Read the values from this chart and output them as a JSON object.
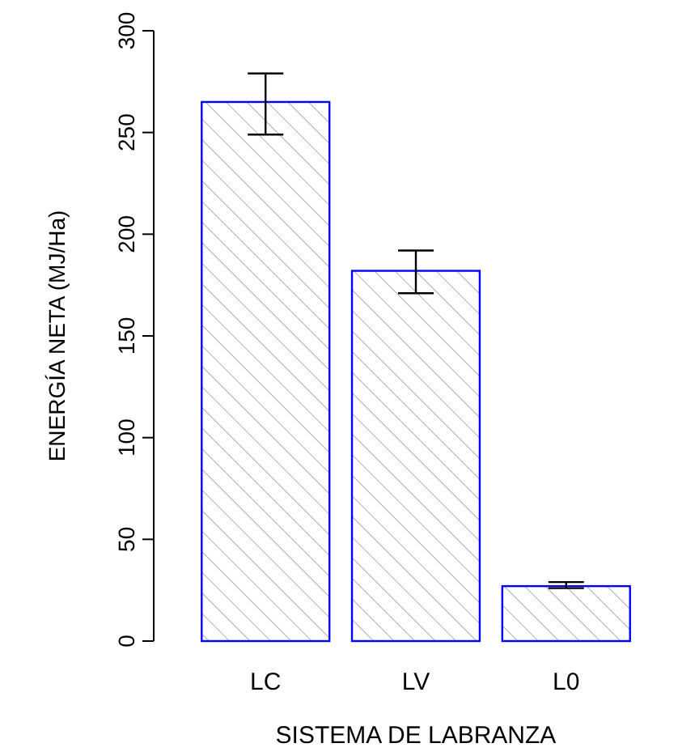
{
  "chart_data": {
    "type": "bar",
    "xlabel": "SISTEMA DE LABRANZA",
    "ylabel": "ENERGÍA NETA (MJ/Ha)",
    "categories": [
      "LC",
      "LV",
      "L0"
    ],
    "values": [
      265,
      182,
      27
    ],
    "errors": [
      [
        249,
        279
      ],
      [
        171,
        192
      ],
      [
        26,
        29
      ]
    ],
    "color": "#0000ff",
    "ylim": [
      0,
      300
    ],
    "yticks": [
      0,
      50,
      100,
      150,
      200,
      250,
      300
    ],
    "grid": false
  }
}
